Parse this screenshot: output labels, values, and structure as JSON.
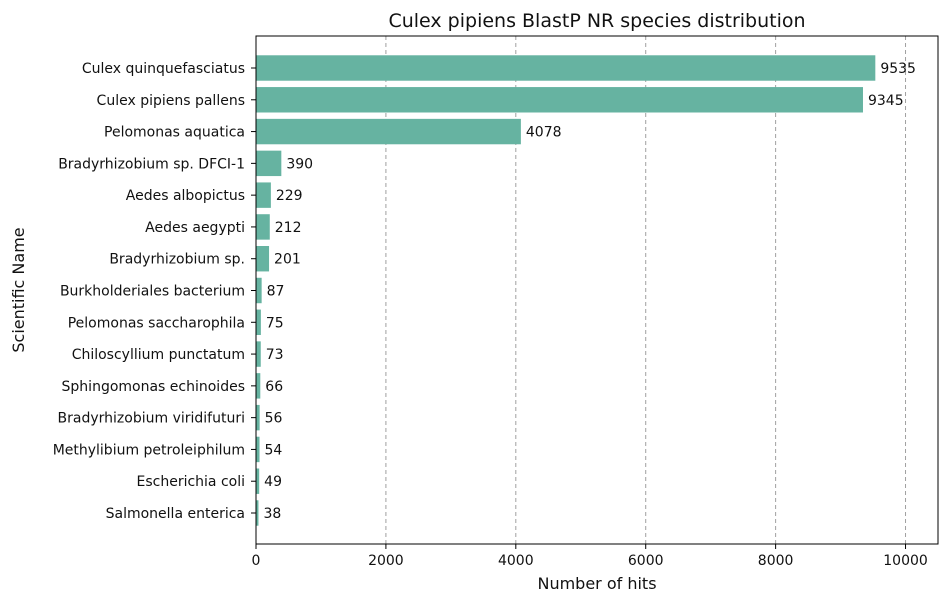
{
  "chart_data": {
    "type": "bar",
    "orientation": "horizontal",
    "title": "Culex pipiens BlastP NR species distribution",
    "xlabel": "Number of hits",
    "ylabel": "Scientific Name",
    "categories": [
      "Culex quinquefasciatus",
      "Culex pipiens pallens",
      "Pelomonas aquatica",
      "Bradyrhizobium sp. DFCI-1",
      "Aedes albopictus",
      "Aedes aegypti",
      "Bradyrhizobium sp.",
      "Burkholderiales bacterium",
      "Pelomonas saccharophila",
      "Chiloscyllium punctatum",
      "Sphingomonas echinoides",
      "Bradyrhizobium viridifuturi",
      "Methylibium petroleiphilum",
      "Escherichia coli",
      "Salmonella enterica"
    ],
    "values": [
      9535,
      9345,
      4078,
      390,
      229,
      212,
      201,
      87,
      75,
      73,
      66,
      56,
      54,
      49,
      38
    ],
    "xlim": [
      0,
      10500
    ],
    "xticks": [
      0,
      2000,
      4000,
      6000,
      8000,
      10000
    ],
    "grid": "vertical dashed",
    "bar_color": "#66b3a1",
    "grid_color": "#a0a0a0",
    "show_value_labels": true
  }
}
